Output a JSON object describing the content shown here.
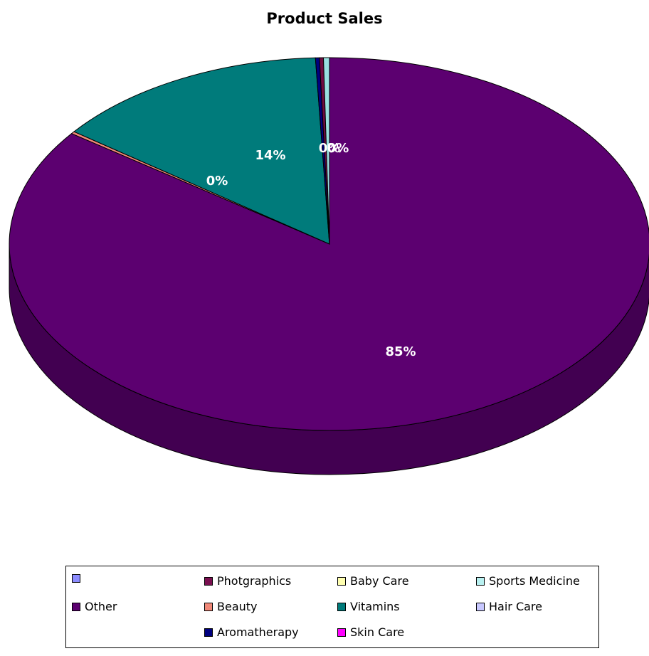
{
  "chart_data": {
    "type": "pie",
    "title": "Product Sales",
    "slices": [
      {
        "label": "Other",
        "percent": 85.1,
        "color": "#5C0070",
        "display": "85%"
      },
      {
        "label": "Beauty",
        "percent": 0.2,
        "color": "#F08878",
        "display": "0%"
      },
      {
        "label": "Vitamins",
        "percent": 14.0,
        "color": "#007B7B",
        "display": "14%"
      },
      {
        "label": "Aromatherapy",
        "percent": 0.2,
        "color": "#000080",
        "display": ""
      },
      {
        "label": "Photgraphics",
        "percent": 0.2,
        "color": "#6E0A40",
        "display": "0%"
      },
      {
        "label": "Sports Medicine",
        "percent": 0.3,
        "color": "#99E0E0",
        "display": "0%"
      }
    ],
    "legend": [
      {
        "label": "",
        "color": "#8C8CFF"
      },
      {
        "label": "Photgraphics",
        "color": "#7A1050"
      },
      {
        "label": "Baby Care",
        "color": "#FFFFB0"
      },
      {
        "label": "Sports Medicine",
        "color": "#B8F0F0"
      },
      {
        "label": "Other",
        "color": "#5C0070"
      },
      {
        "label": "Beauty",
        "color": "#F08878"
      },
      {
        "label": "Vitamins",
        "color": "#007B7B"
      },
      {
        "label": "Hair Care",
        "color": "#C8C8FF"
      },
      {
        "label": "Aromatherapy",
        "color": "#000080"
      },
      {
        "label": "Skin Care",
        "color": "#FF00FF"
      }
    ],
    "legend_position": "bottom",
    "style": "3d"
  }
}
